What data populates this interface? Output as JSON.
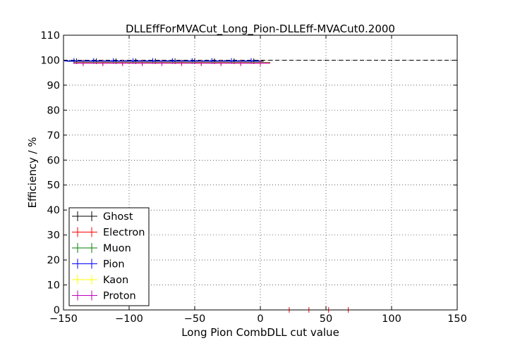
{
  "chart_data": {
    "type": "scatter",
    "title": "DLLEffForMVACut_Long_Pion-DLLEff-MVACut0.2000",
    "xlabel": "Long Pion CombDLL cut value",
    "ylabel": "Efficiency / %",
    "xlim": [
      -150,
      150
    ],
    "ylim": [
      0,
      110
    ],
    "xticks": [
      -150,
      -100,
      -50,
      0,
      50,
      100,
      150
    ],
    "yticks": [
      0,
      10,
      20,
      30,
      40,
      50,
      60,
      70,
      80,
      90,
      100,
      110
    ],
    "xtick_labels": [
      "−150",
      "−100",
      "−50",
      "0",
      "50",
      "100",
      "150"
    ],
    "ytick_labels": [
      "0",
      "10",
      "20",
      "30",
      "40",
      "50",
      "60",
      "70",
      "80",
      "90",
      "100",
      "110"
    ],
    "grid": true,
    "legend_position": "lower-left",
    "reference_line": {
      "y": 100,
      "style": "dashed"
    },
    "series": [
      {
        "name": "Ghost",
        "color": "#000000",
        "x": [
          -140,
          -125,
          -110,
          -95,
          -80,
          -65,
          -50,
          -35,
          -20,
          -5
        ],
        "y": [
          99.6,
          99.6,
          99.6,
          99.6,
          99.6,
          99.6,
          99.6,
          99.6,
          99.6,
          99.6
        ]
      },
      {
        "name": "Electron",
        "color": "#ff0000",
        "x": [
          -135,
          -120,
          -105,
          -90,
          -75,
          -60,
          -45,
          -30,
          -15,
          0,
          22,
          37,
          52,
          67
        ],
        "y": [
          98.8,
          98.8,
          98.8,
          98.8,
          98.8,
          98.8,
          98.8,
          98.8,
          98.8,
          98.8,
          0,
          0,
          0,
          0
        ]
      },
      {
        "name": "Muon",
        "color": "#008000",
        "x": [
          -135,
          -120,
          -105,
          -90,
          -75,
          -60,
          -45,
          -30,
          -15,
          0
        ],
        "y": [
          99.1,
          99.1,
          99.1,
          99.1,
          99.1,
          99.1,
          99.1,
          99.1,
          99.1,
          99.1
        ]
      },
      {
        "name": "Pion",
        "color": "#0000ff",
        "x": [
          -142,
          -127,
          -112,
          -97,
          -82,
          -67,
          -52,
          -37,
          -22,
          -7
        ],
        "y": [
          99.7,
          99.7,
          99.7,
          99.7,
          99.7,
          99.7,
          99.7,
          99.7,
          99.7,
          99.7
        ]
      },
      {
        "name": "Kaon",
        "color": "#ffff00",
        "x": [
          -135,
          -120,
          -105,
          -90,
          -75,
          -60,
          -45,
          -30,
          -15,
          0
        ],
        "y": [
          99.0,
          99.0,
          99.0,
          99.0,
          99.0,
          99.0,
          99.0,
          99.0,
          99.0,
          99.0
        ]
      },
      {
        "name": "Proton",
        "color": "#bf00bf",
        "x": [
          -135,
          -120,
          -105,
          -90,
          -75,
          -60,
          -45,
          -30,
          -15,
          0
        ],
        "y": [
          98.9,
          98.9,
          98.9,
          98.9,
          98.9,
          98.9,
          98.9,
          98.9,
          98.9,
          98.9
        ]
      }
    ]
  }
}
